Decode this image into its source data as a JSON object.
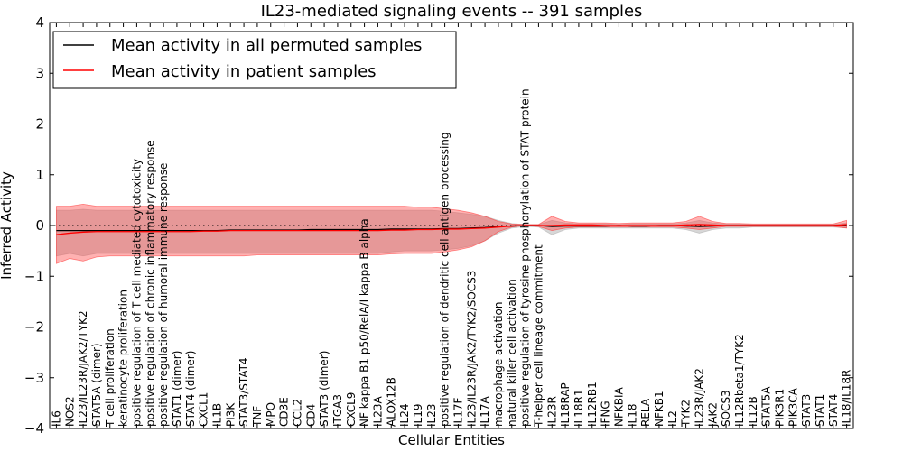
{
  "chart_data": {
    "type": "line",
    "title": "IL23-mediated signaling events -- 391 samples",
    "xlabel": "Cellular Entities",
    "ylabel": "Inferred Activity",
    "ylim": [
      -4,
      4
    ],
    "yticks": [
      -4,
      -3,
      -2,
      -1,
      0,
      1,
      2,
      3,
      4
    ],
    "grid": false,
    "legend_position": "top-left",
    "categories": [
      "IL6",
      "NOS2",
      "IL23/IL23R/JAK2/TYK2",
      "STAT5A (dimer)",
      "T cell proliferation",
      "keratinocyte proliferation",
      "positive regulation of T cell mediated cytotoxicity",
      "positive regulation of chronic inflammatory response",
      "positive regulation of humoral immune response",
      "STAT1 (dimer)",
      "STAT4 (dimer)",
      "CXCL1",
      "IL1B",
      "PI3K",
      "STAT3/STAT4",
      "TNF",
      "MPO",
      "CD3E",
      "CCL2",
      "CD4",
      "STAT3 (dimer)",
      "ITGA3",
      "CXCL9",
      "NF kappa B1 p50/RelA/I kappa B alpha",
      "IL23A",
      "ALOX12B",
      "IL24",
      "IL19",
      "IL23",
      "positive regulation of dendritic cell antigen processing",
      "IL17F",
      "IL23/IL23R/JAK2/TYK2/SOCS3",
      "IL17A",
      "macrophage activation",
      "natural killer cell activation",
      "positive regulation of tyrosine phosphorylation of STAT protein",
      "T-helper cell lineage commitment",
      "IL23R",
      "IL18RAP",
      "IL18R1",
      "IL12RB1",
      "IFNG",
      "NFKBIA",
      "IL18",
      "RELA",
      "NFKB1",
      "IL2",
      "TYK2",
      "IL23R/JAK2",
      "JAK2",
      "SOCS3",
      "IL12Rbeta1/TYK2",
      "IL12B",
      "STAT5A",
      "PIK3R1",
      "PIK3CA",
      "STAT3",
      "STAT1",
      "STAT4",
      "IL18/IL18R"
    ],
    "series": [
      {
        "name": "Mean activity in all permuted samples",
        "color": "#000000",
        "values": [
          -0.1,
          -0.1,
          -0.1,
          -0.1,
          -0.1,
          -0.1,
          -0.1,
          -0.1,
          -0.1,
          -0.1,
          -0.1,
          -0.1,
          -0.1,
          -0.09,
          -0.09,
          -0.09,
          -0.09,
          -0.09,
          -0.09,
          -0.08,
          -0.08,
          -0.08,
          -0.08,
          -0.08,
          -0.08,
          -0.07,
          -0.07,
          -0.07,
          -0.07,
          -0.06,
          -0.06,
          -0.05,
          -0.04,
          -0.02,
          -0.01,
          0.0,
          0.0,
          -0.02,
          -0.01,
          -0.01,
          -0.01,
          -0.01,
          0.0,
          -0.01,
          -0.01,
          0.0,
          0.0,
          -0.01,
          -0.02,
          -0.01,
          0.0,
          0.0,
          0.0,
          0.0,
          0.0,
          0.0,
          0.0,
          0.0,
          0.0,
          0.01
        ],
        "band_lower": [
          -0.6,
          -0.55,
          -0.6,
          -0.55,
          -0.55,
          -0.55,
          -0.55,
          -0.55,
          -0.55,
          -0.55,
          -0.55,
          -0.55,
          -0.55,
          -0.55,
          -0.55,
          -0.55,
          -0.55,
          -0.55,
          -0.55,
          -0.55,
          -0.55,
          -0.55,
          -0.55,
          -0.55,
          -0.55,
          -0.52,
          -0.5,
          -0.5,
          -0.5,
          -0.48,
          -0.45,
          -0.4,
          -0.3,
          -0.15,
          -0.05,
          -0.02,
          -0.03,
          -0.18,
          -0.08,
          -0.05,
          -0.05,
          -0.05,
          -0.05,
          -0.05,
          -0.05,
          -0.05,
          -0.05,
          -0.08,
          -0.15,
          -0.08,
          -0.05,
          -0.05,
          -0.03,
          -0.03,
          -0.03,
          -0.03,
          -0.03,
          -0.03,
          -0.03,
          -0.05
        ],
        "band_upper": [
          0.3,
          0.3,
          0.32,
          0.3,
          0.3,
          0.3,
          0.3,
          0.3,
          0.3,
          0.3,
          0.3,
          0.3,
          0.3,
          0.3,
          0.3,
          0.3,
          0.3,
          0.3,
          0.3,
          0.3,
          0.3,
          0.3,
          0.3,
          0.3,
          0.3,
          0.3,
          0.3,
          0.3,
          0.3,
          0.28,
          0.25,
          0.22,
          0.18,
          0.1,
          0.04,
          0.02,
          0.02,
          0.1,
          0.05,
          0.03,
          0.03,
          0.03,
          0.02,
          0.03,
          0.03,
          0.03,
          0.03,
          0.05,
          0.1,
          0.05,
          0.03,
          0.03,
          0.02,
          0.02,
          0.02,
          0.02,
          0.02,
          0.02,
          0.02,
          0.05
        ]
      },
      {
        "name": "Mean activity in patient samples",
        "color": "#ff0000",
        "values": [
          -0.18,
          -0.15,
          -0.13,
          -0.12,
          -0.12,
          -0.12,
          -0.12,
          -0.12,
          -0.12,
          -0.12,
          -0.12,
          -0.11,
          -0.11,
          -0.1,
          -0.1,
          -0.1,
          -0.1,
          -0.1,
          -0.1,
          -0.1,
          -0.1,
          -0.1,
          -0.1,
          -0.1,
          -0.1,
          -0.09,
          -0.09,
          -0.08,
          -0.08,
          -0.07,
          -0.07,
          -0.06,
          -0.05,
          -0.03,
          -0.01,
          0.0,
          0.0,
          0.0,
          0.01,
          0.01,
          0.01,
          0.0,
          0.0,
          0.0,
          0.0,
          0.0,
          0.0,
          0.01,
          0.02,
          0.01,
          0.0,
          0.0,
          0.0,
          0.0,
          0.0,
          0.0,
          0.0,
          0.0,
          0.0,
          0.02
        ],
        "band_lower": [
          -0.75,
          -0.65,
          -0.7,
          -0.62,
          -0.6,
          -0.6,
          -0.6,
          -0.6,
          -0.6,
          -0.6,
          -0.6,
          -0.6,
          -0.6,
          -0.6,
          -0.6,
          -0.58,
          -0.58,
          -0.58,
          -0.58,
          -0.58,
          -0.58,
          -0.58,
          -0.58,
          -0.58,
          -0.58,
          -0.56,
          -0.55,
          -0.55,
          -0.55,
          -0.52,
          -0.48,
          -0.42,
          -0.3,
          -0.12,
          -0.03,
          0.0,
          -0.02,
          -0.1,
          -0.05,
          -0.03,
          -0.03,
          -0.03,
          -0.03,
          -0.03,
          -0.03,
          -0.03,
          -0.03,
          -0.05,
          -0.08,
          -0.05,
          -0.02,
          -0.02,
          -0.02,
          -0.02,
          -0.02,
          -0.02,
          -0.02,
          -0.02,
          -0.02,
          -0.05
        ],
        "band_upper": [
          0.38,
          0.38,
          0.42,
          0.38,
          0.38,
          0.38,
          0.38,
          0.38,
          0.38,
          0.38,
          0.38,
          0.38,
          0.38,
          0.38,
          0.38,
          0.38,
          0.38,
          0.38,
          0.38,
          0.38,
          0.38,
          0.38,
          0.38,
          0.38,
          0.38,
          0.38,
          0.38,
          0.36,
          0.36,
          0.33,
          0.3,
          0.25,
          0.18,
          0.08,
          0.03,
          0.02,
          0.02,
          0.18,
          0.08,
          0.05,
          0.05,
          0.05,
          0.04,
          0.05,
          0.05,
          0.05,
          0.05,
          0.08,
          0.18,
          0.08,
          0.04,
          0.04,
          0.03,
          0.03,
          0.03,
          0.03,
          0.03,
          0.03,
          0.03,
          0.1
        ]
      }
    ],
    "reference_line": 0
  }
}
